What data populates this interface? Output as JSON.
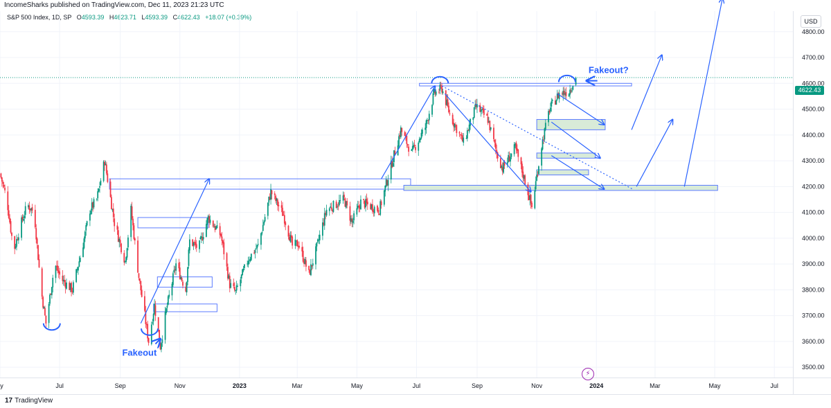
{
  "header": {
    "published": "IncomeSharks published on TradingView.com, Dec 11, 2023 21:23 UTC"
  },
  "legend": {
    "symbol": "S&P 500 Index, 1D, SP",
    "open_label": "O",
    "open": "4593.39",
    "high_label": "H",
    "high": "4623.71",
    "low_label": "L",
    "low": "4593.39",
    "close_label": "C",
    "close": "4622.43",
    "change": "+18.07 (+0.39%)"
  },
  "currency": "USD",
  "last_price": "4622.43",
  "brand": {
    "name": "TradingView",
    "icon": "tradingview-logo-icon"
  },
  "alert_icon": "lightning-icon",
  "colors": {
    "up": "#089981",
    "down": "#f23645",
    "annotation": "#2962ff",
    "zone_fill": "#d8ebd8",
    "zone_stroke": "#5b7bff",
    "grid": "#f0f3fa",
    "axis_text": "#131722"
  },
  "chart_data": {
    "type": "candlestick",
    "x_range": [
      "2022-05-01",
      "2024-07-20"
    ],
    "y_range": [
      3460,
      4880
    ],
    "y_ticks": [
      "4800.00",
      "4700.00",
      "4600.00",
      "4500.00",
      "4400.00",
      "4300.00",
      "4200.00",
      "4100.00",
      "4000.00",
      "3900.00",
      "3800.00",
      "3700.00",
      "3600.00",
      "3500.00"
    ],
    "x_ticks": [
      {
        "label": "ay",
        "date": "2022-05-01"
      },
      {
        "label": "Jul",
        "date": "2022-07-01"
      },
      {
        "label": "Sep",
        "date": "2022-09-01"
      },
      {
        "label": "Nov",
        "date": "2022-11-01"
      },
      {
        "label": "2023",
        "date": "2023-01-01"
      },
      {
        "label": "Mar",
        "date": "2023-03-01"
      },
      {
        "label": "May",
        "date": "2023-05-01"
      },
      {
        "label": "Jul",
        "date": "2023-07-01"
      },
      {
        "label": "Sep",
        "date": "2023-09-01"
      },
      {
        "label": "Nov",
        "date": "2023-11-01"
      },
      {
        "label": "2024",
        "date": "2024-01-01"
      },
      {
        "label": "Mar",
        "date": "2024-03-01"
      },
      {
        "label": "May",
        "date": "2024-05-01"
      },
      {
        "label": "Jul",
        "date": "2024-07-01"
      }
    ],
    "last_price": 4622.43,
    "path_points": [
      [
        "2022-05-01",
        4250
      ],
      [
        "2022-05-08",
        4150
      ],
      [
        "2022-05-15",
        3950
      ],
      [
        "2022-05-22",
        4050
      ],
      [
        "2022-05-29",
        4130
      ],
      [
        "2022-06-05",
        4100
      ],
      [
        "2022-06-12",
        3800
      ],
      [
        "2022-06-17",
        3670
      ],
      [
        "2022-06-26",
        3900
      ],
      [
        "2022-07-03",
        3840
      ],
      [
        "2022-07-14",
        3800
      ],
      [
        "2022-07-24",
        3960
      ],
      [
        "2022-08-01",
        4110
      ],
      [
        "2022-08-08",
        4150
      ],
      [
        "2022-08-16",
        4300
      ],
      [
        "2022-08-26",
        4060
      ],
      [
        "2022-09-06",
        3910
      ],
      [
        "2022-09-12",
        4110
      ],
      [
        "2022-09-20",
        3850
      ],
      [
        "2022-09-30",
        3600
      ],
      [
        "2022-10-06",
        3740
      ],
      [
        "2022-10-12",
        3580
      ],
      [
        "2022-10-18",
        3720
      ],
      [
        "2022-10-28",
        3900
      ],
      [
        "2022-11-07",
        3800
      ],
      [
        "2022-11-11",
        3990
      ],
      [
        "2022-11-20",
        3960
      ],
      [
        "2022-11-30",
        4080
      ],
      [
        "2022-12-13",
        4010
      ],
      [
        "2022-12-22",
        3820
      ],
      [
        "2022-12-28",
        3790
      ],
      [
        "2023-01-10",
        3920
      ],
      [
        "2023-01-20",
        3970
      ],
      [
        "2023-02-02",
        4180
      ],
      [
        "2023-02-15",
        4090
      ],
      [
        "2023-02-24",
        3970
      ],
      [
        "2023-03-02",
        3980
      ],
      [
        "2023-03-13",
        3860
      ],
      [
        "2023-03-20",
        3950
      ],
      [
        "2023-03-31",
        4110
      ],
      [
        "2023-04-18",
        4150
      ],
      [
        "2023-04-26",
        4060
      ],
      [
        "2023-05-05",
        4140
      ],
      [
        "2023-05-24",
        4110
      ],
      [
        "2023-06-05",
        4280
      ],
      [
        "2023-06-15",
        4420
      ],
      [
        "2023-06-26",
        4330
      ],
      [
        "2023-07-10",
        4430
      ],
      [
        "2023-07-19",
        4560
      ],
      [
        "2023-07-27",
        4580
      ],
      [
        "2023-08-04",
        4480
      ],
      [
        "2023-08-18",
        4370
      ],
      [
        "2023-08-31",
        4510
      ],
      [
        "2023-09-12",
        4460
      ],
      [
        "2023-09-21",
        4330
      ],
      [
        "2023-09-27",
        4270
      ],
      [
        "2023-10-10",
        4350
      ],
      [
        "2023-10-20",
        4220
      ],
      [
        "2023-10-27",
        4120
      ],
      [
        "2023-11-06",
        4360
      ],
      [
        "2023-11-14",
        4500
      ],
      [
        "2023-11-24",
        4560
      ],
      [
        "2023-12-04",
        4570
      ],
      [
        "2023-12-11",
        4622
      ]
    ],
    "annotations": {
      "texts": [
        {
          "text": "Fakeout",
          "date": "2022-09-03",
          "price": 3545
        },
        {
          "text": "Fakeout?",
          "date": "2023-12-24",
          "price": 4640
        }
      ],
      "zones": [
        {
          "from": "2022-08-21",
          "to": "2023-06-25",
          "low": 4190,
          "high": 4230
        },
        {
          "from": "2022-09-19",
          "to": "2022-11-30",
          "low": 4040,
          "high": 4080
        },
        {
          "from": "2022-10-09",
          "to": "2022-12-04",
          "low": 3810,
          "high": 3850
        },
        {
          "from": "2022-10-05",
          "to": "2022-12-09",
          "low": 3715,
          "high": 3745
        },
        {
          "from": "2023-06-18",
          "to": "2024-05-04",
          "low": 4185,
          "high": 4205
        },
        {
          "from": "2023-11-01",
          "to": "2024-01-10",
          "low": 4420,
          "high": 4460
        },
        {
          "from": "2023-11-01",
          "to": "2023-12-31",
          "low": 4310,
          "high": 4330
        },
        {
          "from": "2023-11-01",
          "to": "2023-12-24",
          "low": 4245,
          "high": 4265
        },
        {
          "from": "2023-07-04",
          "to": "2024-02-06",
          "low": 4590,
          "high": 4600
        }
      ],
      "arrows": [
        {
          "from": [
            "2022-09-22",
            3670
          ],
          "to": [
            "2022-12-01",
            4230
          ]
        },
        {
          "from": [
            "2023-05-26",
            4230
          ],
          "to": [
            "2023-07-20",
            4590
          ]
        },
        {
          "from": [
            "2023-07-30",
            4560
          ],
          "to": [
            "2023-10-26",
            4180
          ]
        },
        {
          "from": [
            "2023-11-22",
            4560
          ],
          "to": [
            "2024-01-09",
            4440
          ]
        },
        {
          "from": [
            "2023-11-16",
            4450
          ],
          "to": [
            "2024-01-05",
            4310
          ]
        },
        {
          "from": [
            "2023-11-16",
            4320
          ],
          "to": [
            "2024-01-09",
            4190
          ]
        },
        {
          "from": [
            "2024-02-06",
            4420
          ],
          "to": [
            "2024-03-08",
            4710
          ]
        },
        {
          "from": [
            "2024-02-11",
            4200
          ],
          "to": [
            "2024-03-19",
            4460
          ]
        },
        {
          "from": [
            "2024-03-31",
            4200
          ],
          "to": [
            "2024-05-09",
            4930
          ]
        },
        {
          "from": [
            "2024-01-20",
            3510
          ],
          "to": [
            "2024-01-20",
            3510
          ]
        }
      ],
      "fakeout_arrows": [
        {
          "from": [
            "2022-10-07",
            3590
          ],
          "to": [
            "2022-10-12",
            3610
          ]
        },
        {
          "from": [
            "2024-01-02",
            4610
          ],
          "to": [
            "2023-12-22",
            4610
          ]
        }
      ],
      "dotted_trend": {
        "from": [
          "2023-07-27",
          4590
        ],
        "to": [
          "2024-02-07",
          4190
        ]
      },
      "cup_arcs": [
        {
          "date": "2022-06-23",
          "price": 3670,
          "width_days": 18
        },
        {
          "date": "2022-10-01",
          "price": 3650,
          "width_days": 18
        },
        {
          "date": "2023-07-25",
          "price": 4600,
          "width_days": 18
        },
        {
          "date": "2023-12-02",
          "price": 4605,
          "width_days": 18
        }
      ]
    }
  }
}
